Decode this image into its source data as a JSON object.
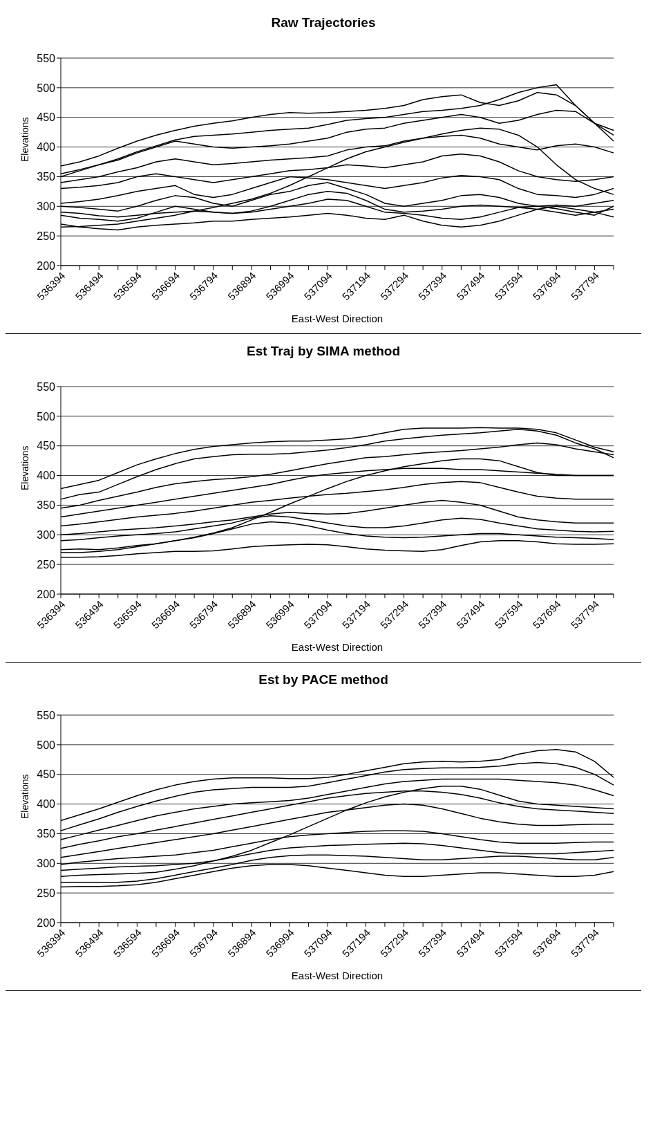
{
  "chart_data": [
    {
      "type": "line",
      "title": "Raw  Trajectories",
      "xlabel": "East-West Direction",
      "ylabel": "Elevations",
      "categories": [
        "536394",
        null,
        "536494",
        null,
        "536594",
        null,
        "536694",
        null,
        "536794",
        null,
        "536894",
        null,
        "536994",
        null,
        "537094",
        null,
        "537194",
        null,
        "537294",
        null,
        "537394",
        null,
        "537494",
        null,
        "537594",
        null,
        "537694",
        null,
        "537794",
        null
      ],
      "ylim": [
        200,
        550
      ],
      "yticks": [
        200,
        250,
        300,
        350,
        400,
        450,
        500,
        550
      ],
      "grid": "y",
      "marker": "none",
      "line_style": "solid",
      "series": [
        {
          "color": "#000000",
          "values": [
            368,
            375,
            385,
            398,
            410,
            420,
            428,
            435,
            440,
            444,
            450,
            455,
            458,
            457,
            458,
            460,
            462,
            465,
            470,
            480,
            485,
            488,
            475,
            470,
            478,
            492,
            488,
            470,
            440,
            428
          ]
        },
        {
          "color": "#000000",
          "values": [
            350,
            360,
            370,
            380,
            392,
            402,
            412,
            418,
            420,
            422,
            425,
            428,
            430,
            432,
            438,
            445,
            448,
            450,
            455,
            460,
            462,
            465,
            470,
            480,
            492,
            500,
            505,
            470,
            440,
            410
          ]
        },
        {
          "color": "#000000",
          "values": [
            265,
            266,
            268,
            270,
            275,
            280,
            285,
            292,
            298,
            305,
            312,
            322,
            335,
            350,
            365,
            380,
            392,
            400,
            408,
            415,
            422,
            428,
            432,
            430,
            420,
            400,
            370,
            345,
            330,
            320
          ]
        },
        {
          "color": "#000000",
          "values": [
            355,
            362,
            370,
            378,
            390,
            400,
            410,
            405,
            400,
            398,
            400,
            402,
            405,
            410,
            415,
            425,
            430,
            432,
            440,
            445,
            450,
            455,
            450,
            440,
            445,
            455,
            462,
            460,
            440,
            420
          ]
        },
        {
          "color": "#000000",
          "values": [
            340,
            345,
            350,
            358,
            365,
            375,
            380,
            375,
            370,
            372,
            375,
            378,
            380,
            382,
            385,
            395,
            400,
            402,
            410,
            415,
            418,
            420,
            415,
            405,
            400,
            395,
            402,
            405,
            400,
            390
          ]
        },
        {
          "color": "#000000",
          "values": [
            330,
            332,
            335,
            340,
            350,
            355,
            350,
            345,
            340,
            345,
            350,
            355,
            360,
            362,
            365,
            370,
            368,
            365,
            370,
            375,
            385,
            388,
            385,
            375,
            360,
            350,
            345,
            342,
            345,
            350
          ]
        },
        {
          "color": "#000000",
          "values": [
            305,
            308,
            312,
            318,
            325,
            330,
            335,
            320,
            315,
            320,
            330,
            340,
            350,
            348,
            345,
            340,
            335,
            330,
            335,
            340,
            348,
            352,
            350,
            345,
            330,
            320,
            318,
            315,
            320,
            330
          ]
        },
        {
          "color": "#000000",
          "values": [
            300,
            298,
            295,
            292,
            300,
            310,
            318,
            315,
            305,
            300,
            310,
            320,
            325,
            335,
            340,
            330,
            320,
            305,
            300,
            305,
            310,
            318,
            320,
            315,
            305,
            300,
            302,
            300,
            305,
            310
          ]
        },
        {
          "color": "#000000",
          "values": [
            285,
            280,
            278,
            275,
            280,
            290,
            300,
            295,
            290,
            288,
            292,
            300,
            310,
            320,
            325,
            322,
            310,
            295,
            290,
            292,
            295,
            300,
            302,
            300,
            298,
            295,
            290,
            285,
            290,
            295
          ]
        },
        {
          "color": "#000000",
          "values": [
            270,
            265,
            262,
            260,
            265,
            268,
            270,
            272,
            275,
            275,
            278,
            280,
            282,
            285,
            288,
            285,
            280,
            278,
            285,
            275,
            268,
            265,
            268,
            275,
            285,
            295,
            300,
            295,
            290,
            282
          ]
        },
        {
          "color": "#000000",
          "values": [
            290,
            288,
            284,
            282,
            285,
            288,
            290,
            292,
            290,
            288,
            290,
            295,
            300,
            305,
            312,
            310,
            300,
            290,
            288,
            285,
            280,
            278,
            282,
            290,
            298,
            300,
            296,
            290,
            285,
            300
          ]
        }
      ]
    },
    {
      "type": "line",
      "title": "Est  Traj by SIMA method",
      "xlabel": "East-West Direction",
      "ylabel": "Elevations",
      "categories": [
        "536394",
        null,
        "536494",
        null,
        "536594",
        null,
        "536694",
        null,
        "536794",
        null,
        "536894",
        null,
        "536994",
        null,
        "537094",
        null,
        "537194",
        null,
        "537294",
        null,
        "537394",
        null,
        "537494",
        null,
        "537594",
        null,
        "537694",
        null,
        "537794",
        null
      ],
      "ylim": [
        200,
        550
      ],
      "yticks": [
        200,
        250,
        300,
        350,
        400,
        450,
        500,
        550
      ],
      "grid": "y",
      "marker": "none",
      "line_style": "solid",
      "series": [
        {
          "color": "#000000",
          "values": [
            378,
            385,
            392,
            405,
            418,
            428,
            437,
            444,
            449,
            452,
            455,
            457,
            458,
            458,
            460,
            462,
            466,
            472,
            478,
            480,
            480,
            480,
            481,
            480,
            480,
            478,
            472,
            460,
            448,
            440
          ]
        },
        {
          "color": "#000000",
          "values": [
            360,
            368,
            372,
            385,
            398,
            410,
            420,
            428,
            432,
            435,
            436,
            436,
            437,
            440,
            443,
            447,
            452,
            458,
            462,
            465,
            468,
            470,
            472,
            475,
            478,
            475,
            468,
            455,
            445,
            430
          ]
        },
        {
          "color": "#000000",
          "values": [
            270,
            270,
            272,
            275,
            280,
            285,
            290,
            296,
            303,
            312,
            325,
            338,
            352,
            365,
            378,
            390,
            400,
            408,
            415,
            420,
            425,
            428,
            428,
            425,
            415,
            405,
            400,
            400,
            400,
            400
          ]
        },
        {
          "color": "#000000",
          "values": [
            345,
            350,
            358,
            365,
            372,
            380,
            386,
            390,
            393,
            395,
            398,
            402,
            408,
            414,
            420,
            425,
            430,
            432,
            435,
            438,
            440,
            442,
            445,
            448,
            452,
            455,
            452,
            445,
            440,
            435
          ]
        },
        {
          "color": "#000000",
          "values": [
            330,
            335,
            340,
            345,
            350,
            355,
            360,
            365,
            370,
            375,
            380,
            385,
            392,
            398,
            402,
            405,
            408,
            410,
            412,
            412,
            412,
            410,
            410,
            408,
            406,
            404,
            402,
            400,
            400,
            400
          ]
        },
        {
          "color": "#000000",
          "values": [
            315,
            318,
            322,
            326,
            330,
            333,
            336,
            340,
            345,
            350,
            355,
            358,
            362,
            365,
            368,
            370,
            373,
            376,
            380,
            385,
            388,
            390,
            388,
            380,
            372,
            365,
            362,
            360,
            360,
            360
          ]
        },
        {
          "color": "#000000",
          "values": [
            300,
            302,
            305,
            308,
            310,
            312,
            315,
            318,
            322,
            325,
            330,
            335,
            338,
            336,
            335,
            336,
            340,
            345,
            350,
            355,
            358,
            355,
            350,
            340,
            330,
            325,
            322,
            320,
            320,
            320
          ]
        },
        {
          "color": "#000000",
          "values": [
            290,
            292,
            295,
            298,
            300,
            302,
            305,
            310,
            315,
            320,
            328,
            332,
            330,
            325,
            320,
            315,
            312,
            312,
            315,
            320,
            325,
            328,
            326,
            320,
            315,
            310,
            308,
            306,
            305,
            306
          ]
        },
        {
          "color": "#000000",
          "values": [
            275,
            276,
            275,
            278,
            282,
            285,
            290,
            295,
            302,
            310,
            318,
            322,
            320,
            315,
            308,
            302,
            298,
            296,
            295,
            296,
            298,
            300,
            302,
            302,
            300,
            298,
            296,
            295,
            294,
            292
          ]
        },
        {
          "color": "#000000",
          "values": [
            262,
            262,
            263,
            265,
            268,
            270,
            272,
            272,
            273,
            276,
            280,
            282,
            283,
            284,
            283,
            280,
            276,
            274,
            273,
            272,
            275,
            282,
            288,
            290,
            290,
            288,
            285,
            284,
            284,
            285
          ]
        }
      ]
    },
    {
      "type": "line",
      "title": "Est  by PACE method",
      "xlabel": "East-West Direction",
      "ylabel": "Elevations",
      "categories": [
        "536394",
        null,
        "536494",
        null,
        "536594",
        null,
        "536694",
        null,
        "536794",
        null,
        "536894",
        null,
        "536994",
        null,
        "537094",
        null,
        "537194",
        null,
        "537294",
        null,
        "537394",
        null,
        "537494",
        null,
        "537594",
        null,
        "537694",
        null,
        "537794",
        null
      ],
      "ylim": [
        200,
        550
      ],
      "yticks": [
        200,
        250,
        300,
        350,
        400,
        450,
        500,
        550
      ],
      "grid": "y",
      "marker": "none",
      "line_style": "solid",
      "series": [
        {
          "color": "#000000",
          "values": [
            372,
            382,
            392,
            403,
            414,
            424,
            432,
            438,
            442,
            444,
            444,
            444,
            443,
            443,
            445,
            450,
            456,
            462,
            468,
            471,
            472,
            471,
            472,
            475,
            484,
            490,
            492,
            488,
            472,
            445
          ]
        },
        {
          "color": "#000000",
          "values": [
            355,
            365,
            375,
            386,
            396,
            405,
            413,
            420,
            424,
            426,
            428,
            428,
            428,
            430,
            436,
            442,
            448,
            454,
            458,
            460,
            461,
            461,
            462,
            464,
            468,
            470,
            468,
            462,
            450,
            432
          ]
        },
        {
          "color": "#000000",
          "values": [
            278,
            280,
            281,
            282,
            283,
            285,
            290,
            296,
            304,
            312,
            322,
            335,
            348,
            362,
            376,
            390,
            402,
            412,
            420,
            426,
            430,
            430,
            425,
            415,
            405,
            400,
            398,
            396,
            394,
            392
          ]
        },
        {
          "color": "#000000",
          "values": [
            340,
            348,
            356,
            364,
            372,
            380,
            386,
            392,
            396,
            400,
            402,
            404,
            406,
            410,
            416,
            422,
            428,
            434,
            438,
            440,
            442,
            442,
            442,
            442,
            440,
            438,
            436,
            432,
            424,
            414
          ]
        },
        {
          "color": "#000000",
          "values": [
            325,
            332,
            338,
            345,
            350,
            356,
            362,
            368,
            374,
            380,
            386,
            392,
            398,
            404,
            410,
            414,
            418,
            420,
            422,
            422,
            420,
            416,
            410,
            402,
            396,
            392,
            390,
            388,
            386,
            384
          ]
        },
        {
          "color": "#000000",
          "values": [
            310,
            315,
            320,
            325,
            330,
            335,
            340,
            345,
            350,
            356,
            362,
            368,
            374,
            380,
            386,
            390,
            394,
            398,
            400,
            398,
            392,
            384,
            376,
            370,
            366,
            364,
            364,
            365,
            366,
            366
          ]
        },
        {
          "color": "#000000",
          "values": [
            298,
            302,
            305,
            308,
            310,
            312,
            314,
            318,
            322,
            328,
            334,
            340,
            345,
            348,
            350,
            352,
            354,
            355,
            355,
            354,
            350,
            345,
            340,
            336,
            334,
            334,
            334,
            335,
            336,
            336
          ]
        },
        {
          "color": "#000000",
          "values": [
            288,
            290,
            292,
            294,
            295,
            296,
            298,
            300,
            304,
            310,
            316,
            322,
            326,
            328,
            330,
            331,
            332,
            333,
            334,
            333,
            330,
            326,
            322,
            318,
            316,
            316,
            316,
            318,
            320,
            322
          ]
        },
        {
          "color": "#000000",
          "values": [
            268,
            268,
            268,
            268,
            270,
            274,
            280,
            286,
            292,
            298,
            305,
            310,
            313,
            314,
            314,
            313,
            312,
            310,
            308,
            306,
            306,
            308,
            310,
            312,
            312,
            310,
            308,
            306,
            306,
            310
          ]
        },
        {
          "color": "#000000",
          "values": [
            260,
            261,
            261,
            262,
            264,
            268,
            274,
            280,
            286,
            292,
            296,
            298,
            298,
            296,
            292,
            288,
            284,
            280,
            278,
            278,
            280,
            282,
            284,
            284,
            282,
            280,
            278,
            278,
            280,
            286
          ]
        }
      ]
    }
  ]
}
